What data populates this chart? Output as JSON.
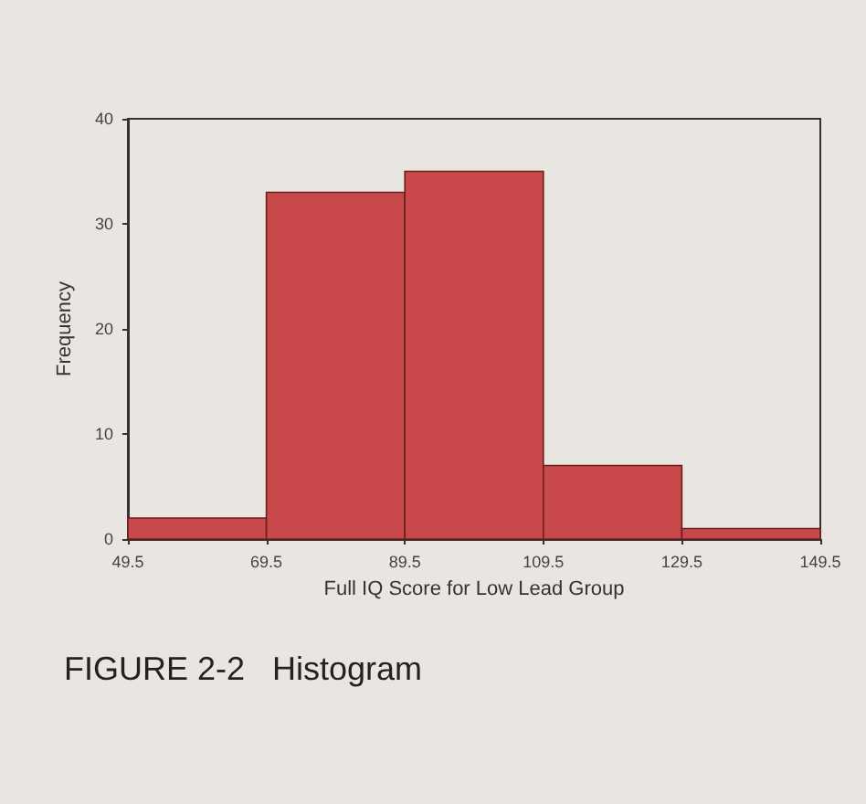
{
  "chart_data": {
    "type": "histogram",
    "title": "FIGURE 2-2   Histogram",
    "xlabel": "Full IQ Score for Low Lead Group",
    "ylabel": "Frequency",
    "bins": [
      49.5,
      69.5,
      89.5,
      109.5,
      129.5,
      149.5
    ],
    "values": [
      2,
      33,
      35,
      7,
      1
    ],
    "color": "#c9484a",
    "xlim": [
      49.5,
      149.5
    ],
    "xticks": [
      49.5,
      69.5,
      89.5,
      109.5,
      129.5,
      149.5
    ],
    "ylim": [
      0,
      40
    ],
    "yticks": [
      0,
      10,
      20,
      30,
      40
    ],
    "grid": false
  }
}
